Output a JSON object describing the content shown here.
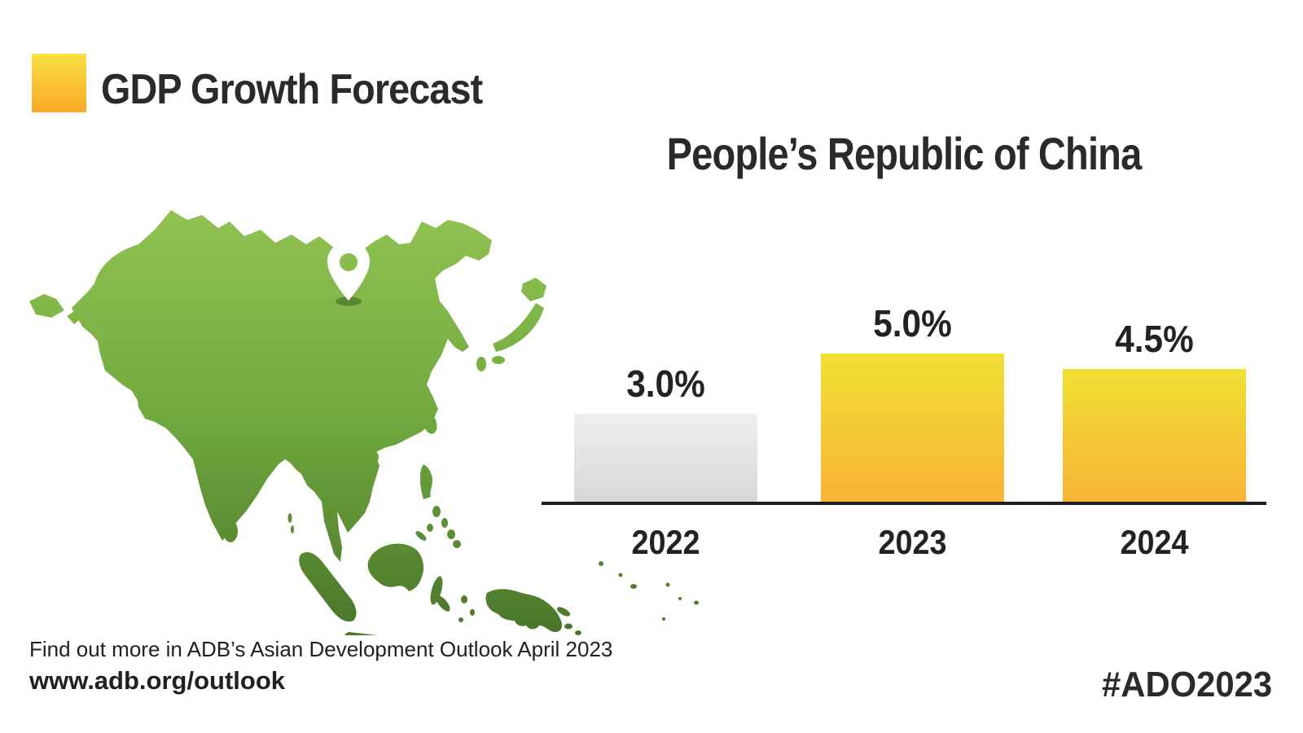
{
  "header": {
    "title": "GDP Growth Forecast"
  },
  "chart_data": {
    "type": "bar",
    "title": "People’s Republic of China",
    "categories": [
      "2022",
      "2023",
      "2024"
    ],
    "values": [
      3.0,
      5.0,
      4.5
    ],
    "value_labels": [
      "3.0%",
      "5.0%",
      "4.5%"
    ],
    "unit": "% GDP growth",
    "ylim": [
      0,
      5.5
    ],
    "bar_styles": [
      "actual",
      "forecast",
      "forecast"
    ],
    "gridlines": "none (baseline only)",
    "legend_position": "none"
  },
  "map": {
    "pin_country": "People’s Republic of China"
  },
  "footer": {
    "note": "Find out more in ADB’s Asian Development Outlook April 2023",
    "url": "www.adb.org/outlook",
    "hashtag": "#ADO2023"
  },
  "colors": {
    "accent_top": "#f9e042",
    "accent_bottom": "#f8a928",
    "bar_yellow_top": "#f0e034",
    "bar_yellow_bottom": "#f9b237",
    "bar_gray_top": "#efefef",
    "bar_gray_bottom": "#d7d7d7",
    "map_green_top": "#92c353",
    "map_green_bottom": "#4a7529",
    "text_dark": "#272525",
    "axis_line": "#1f1f1f"
  }
}
